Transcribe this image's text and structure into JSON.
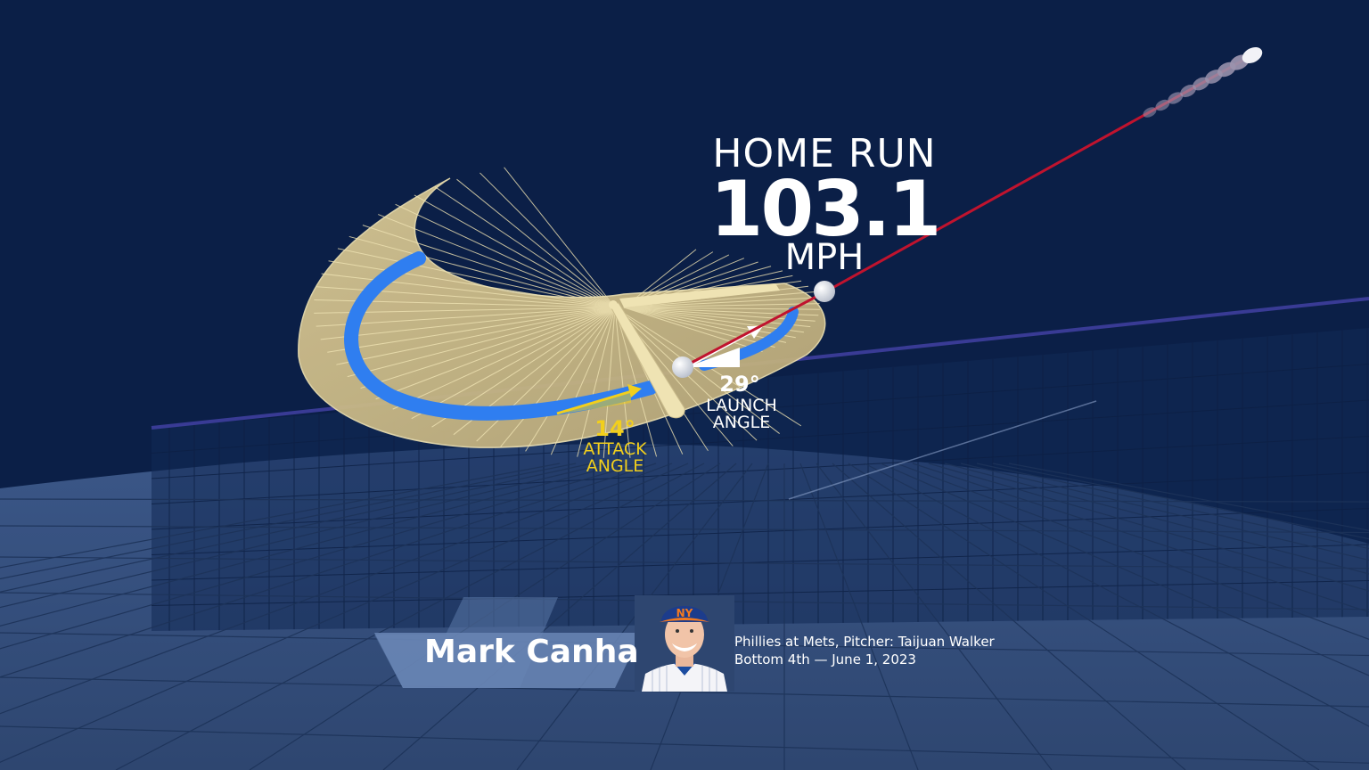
{
  "result": {
    "label": "HOME RUN",
    "exit_velocity": "103.1",
    "unit": "MPH"
  },
  "launch_angle": {
    "value": "29°",
    "label": "LAUNCH ANGLE"
  },
  "attack_angle": {
    "value": "14°",
    "label": "ATTACK ANGLE"
  },
  "player": {
    "name": "Mark Canha",
    "team_logo_text": "NY"
  },
  "game": {
    "line1": "Phillies at Mets, Pitcher: Taijuan Walker",
    "line2": "Bottom 4th — June 1, 2023"
  },
  "colors": {
    "background": "#0b1f47",
    "field": "#2e4670",
    "swing_plane": "#c9b987",
    "bat_path": "#2f7ef0",
    "ball_trail": "#c0132e",
    "attack_accent": "#f2cf1c"
  }
}
